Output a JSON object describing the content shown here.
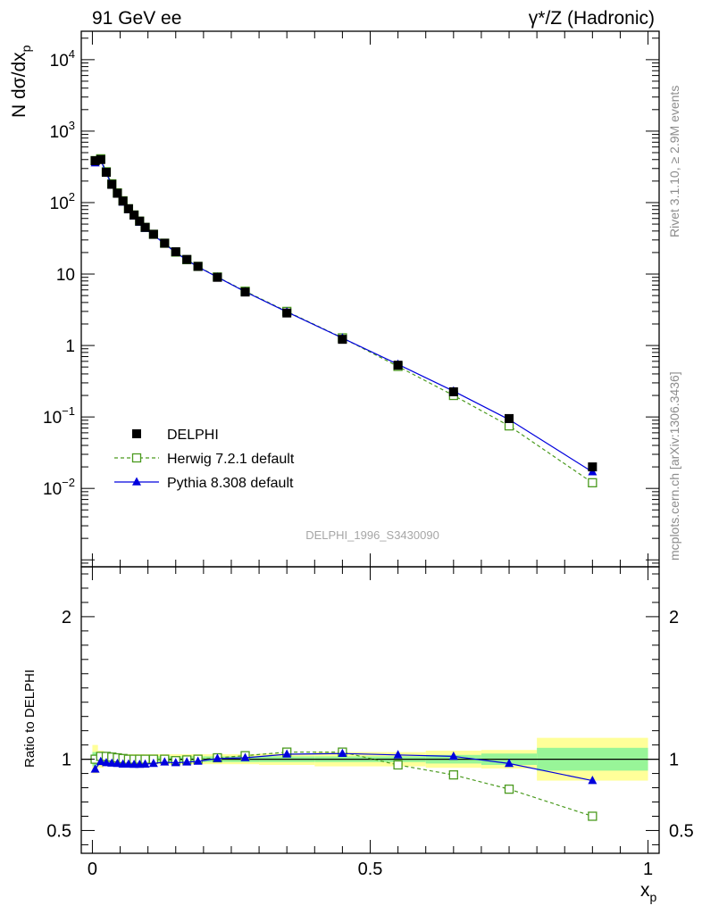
{
  "header": {
    "left_title": "91 GeV ee",
    "right_title": "γ*/Z (Hadronic)"
  },
  "side_labels": {
    "rivet": "Rivet 3.1.10, ≥ 2.9M events",
    "mcplots": "mcplots.cern.ch [arXiv:1306.3436]"
  },
  "watermark": "DELPHI_1996_S3430090",
  "chart_data": [
    {
      "type": "scatter",
      "title": "91 GeV ee",
      "xlabel": "x_p",
      "ylabel": "N dσ/dx_p",
      "yscale": "log",
      "xlim": [
        -0.02,
        1.02
      ],
      "ylim": [
        0.0008,
        25000
      ],
      "ytick_labels": [
        "10^-2",
        "10^-1",
        "1",
        "10",
        "10^2",
        "10^3",
        "10^4"
      ],
      "legend_position": "bottom-left",
      "x": [
        0.005,
        0.015,
        0.025,
        0.035,
        0.045,
        0.055,
        0.065,
        0.075,
        0.085,
        0.095,
        0.11,
        0.13,
        0.15,
        0.17,
        0.19,
        0.225,
        0.275,
        0.35,
        0.45,
        0.55,
        0.65,
        0.75,
        0.9
      ],
      "series": [
        {
          "name": "DELPHI",
          "marker": "filled-square",
          "color": "#000000",
          "values": [
            385,
            400,
            265,
            180,
            135,
            105,
            82,
            67,
            55,
            45,
            36,
            27,
            20.5,
            16,
            12.8,
            9.0,
            5.6,
            2.85,
            1.22,
            0.53,
            0.225,
            0.095,
            0.02
          ]
        },
        {
          "name": "Herwig 7.2.1 default",
          "marker": "open-square",
          "line": "dashed",
          "color": "#4a9a1e",
          "values": [
            387,
            410,
            270,
            183,
            137,
            106,
            82,
            67,
            55,
            45,
            36,
            27,
            20.3,
            15.9,
            12.8,
            9.1,
            5.75,
            3.0,
            1.28,
            0.51,
            0.2,
            0.075,
            0.012
          ]
        },
        {
          "name": "Pythia 8.308 default",
          "marker": "filled-triangle",
          "line": "solid",
          "color": "#0000dd",
          "values": [
            358,
            393,
            258,
            175,
            131,
            101,
            79,
            64.5,
            53,
            43.5,
            35,
            26.5,
            20,
            15.7,
            12.6,
            9.05,
            5.65,
            2.95,
            1.27,
            0.545,
            0.23,
            0.092,
            0.017
          ]
        }
      ]
    },
    {
      "type": "scatter",
      "xlabel": "x_p",
      "ylabel": "Ratio to DELPHI",
      "xlim": [
        -0.02,
        1.02
      ],
      "ylim": [
        0.34,
        2.35
      ],
      "xtick_labels": [
        "0",
        "0.5",
        "1"
      ],
      "ytick_labels": [
        "0.5",
        "1",
        "2"
      ],
      "reference_line": 1.0,
      "uncertainty_bands": {
        "x_edges": [
          0,
          0.01,
          0.02,
          0.03,
          0.04,
          0.05,
          0.06,
          0.07,
          0.08,
          0.09,
          0.1,
          0.12,
          0.14,
          0.16,
          0.18,
          0.2,
          0.25,
          0.3,
          0.4,
          0.5,
          0.6,
          0.7,
          0.8,
          1.0
        ],
        "stat_halfwidth": [
          0.05,
          0.03,
          0.025,
          0.02,
          0.02,
          0.02,
          0.02,
          0.02,
          0.02,
          0.02,
          0.02,
          0.02,
          0.02,
          0.02,
          0.02,
          0.02,
          0.02,
          0.02,
          0.02,
          0.02,
          0.03,
          0.04,
          0.08
        ],
        "total_halfwidth": [
          0.1,
          0.06,
          0.045,
          0.04,
          0.035,
          0.035,
          0.035,
          0.035,
          0.035,
          0.035,
          0.035,
          0.035,
          0.035,
          0.035,
          0.035,
          0.035,
          0.035,
          0.04,
          0.05,
          0.05,
          0.06,
          0.065,
          0.15
        ],
        "stat_color": "#98f598",
        "total_color": "#ffff99"
      },
      "series": [
        {
          "name": "Herwig 7.2.1 default",
          "color": "#4a9a1e",
          "values": [
            1.0,
            1.02,
            1.02,
            1.015,
            1.01,
            1.005,
            1.0,
            1.0,
            1.0,
            1.0,
            1.0,
            1.0,
            0.99,
            0.995,
            1.0,
            1.01,
            1.025,
            1.05,
            1.05,
            0.96,
            0.89,
            0.79,
            0.6
          ]
        },
        {
          "name": "Pythia 8.308 default",
          "color": "#0000dd",
          "values": [
            0.93,
            0.983,
            0.975,
            0.972,
            0.97,
            0.965,
            0.965,
            0.963,
            0.963,
            0.965,
            0.97,
            0.98,
            0.975,
            0.98,
            0.985,
            1.005,
            1.01,
            1.035,
            1.04,
            1.03,
            1.02,
            0.97,
            0.85
          ]
        }
      ]
    }
  ]
}
